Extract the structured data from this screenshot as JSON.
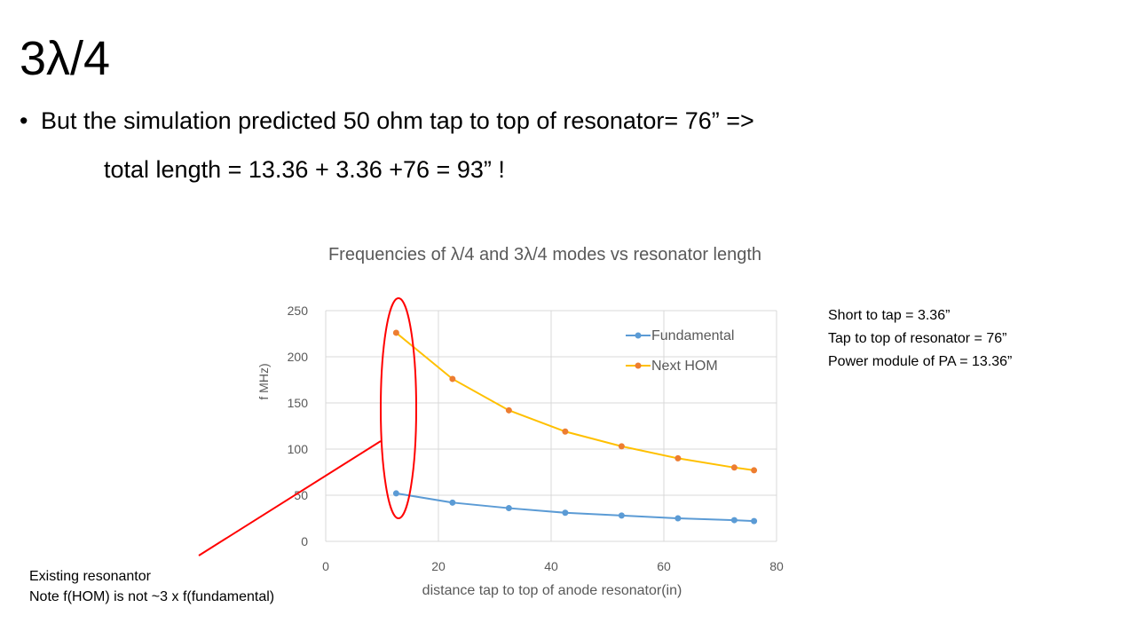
{
  "slide": {
    "title": "3λ/4",
    "bullet": "But the simulation predicted 50 ohm tap to top of resonator= 76” =>",
    "subline": "total length = 13.36 + 3.36 +76 = 93” !"
  },
  "side_note": [
    "Short to tap = 3.36”",
    "Tap to top of resonator = 76”",
    "Power module of PA = 13.36”"
  ],
  "bottom_note": [
    "Existing resonantor",
    "Note f(HOM) is not ~3 x f(fundamental)"
  ],
  "colors": {
    "fundamental_line": "#5B9BD5",
    "hom_line": "#FFC000",
    "hom_marker": "#ED7D31",
    "annotation": "#FF0000",
    "grid": "#D9D9D9",
    "axis_text": "#595959"
  },
  "chart_data": {
    "type": "line",
    "title": "Frequencies of λ/4 and 3λ/4 modes vs resonator length",
    "xlabel": "distance tap to top of anode resonator(in)",
    "ylabel": "f MHz)",
    "xlim": [
      0,
      80
    ],
    "ylim": [
      0,
      250
    ],
    "xticks": [
      0,
      20,
      40,
      60,
      80
    ],
    "yticks": [
      0,
      50,
      100,
      150,
      200,
      250
    ],
    "grid": true,
    "legend_position": "top-right",
    "series": [
      {
        "name": "Fundamental",
        "x": [
          12.5,
          22.5,
          32.5,
          42.5,
          52.5,
          62.5,
          72.5,
          76
        ],
        "y": [
          52,
          42,
          36,
          31,
          28,
          25,
          23,
          22
        ]
      },
      {
        "name": "Next HOM",
        "x": [
          12.5,
          22.5,
          32.5,
          42.5,
          52.5,
          62.5,
          72.5,
          76
        ],
        "y": [
          226,
          176,
          142,
          119,
          103,
          90,
          80,
          77
        ]
      }
    ]
  }
}
